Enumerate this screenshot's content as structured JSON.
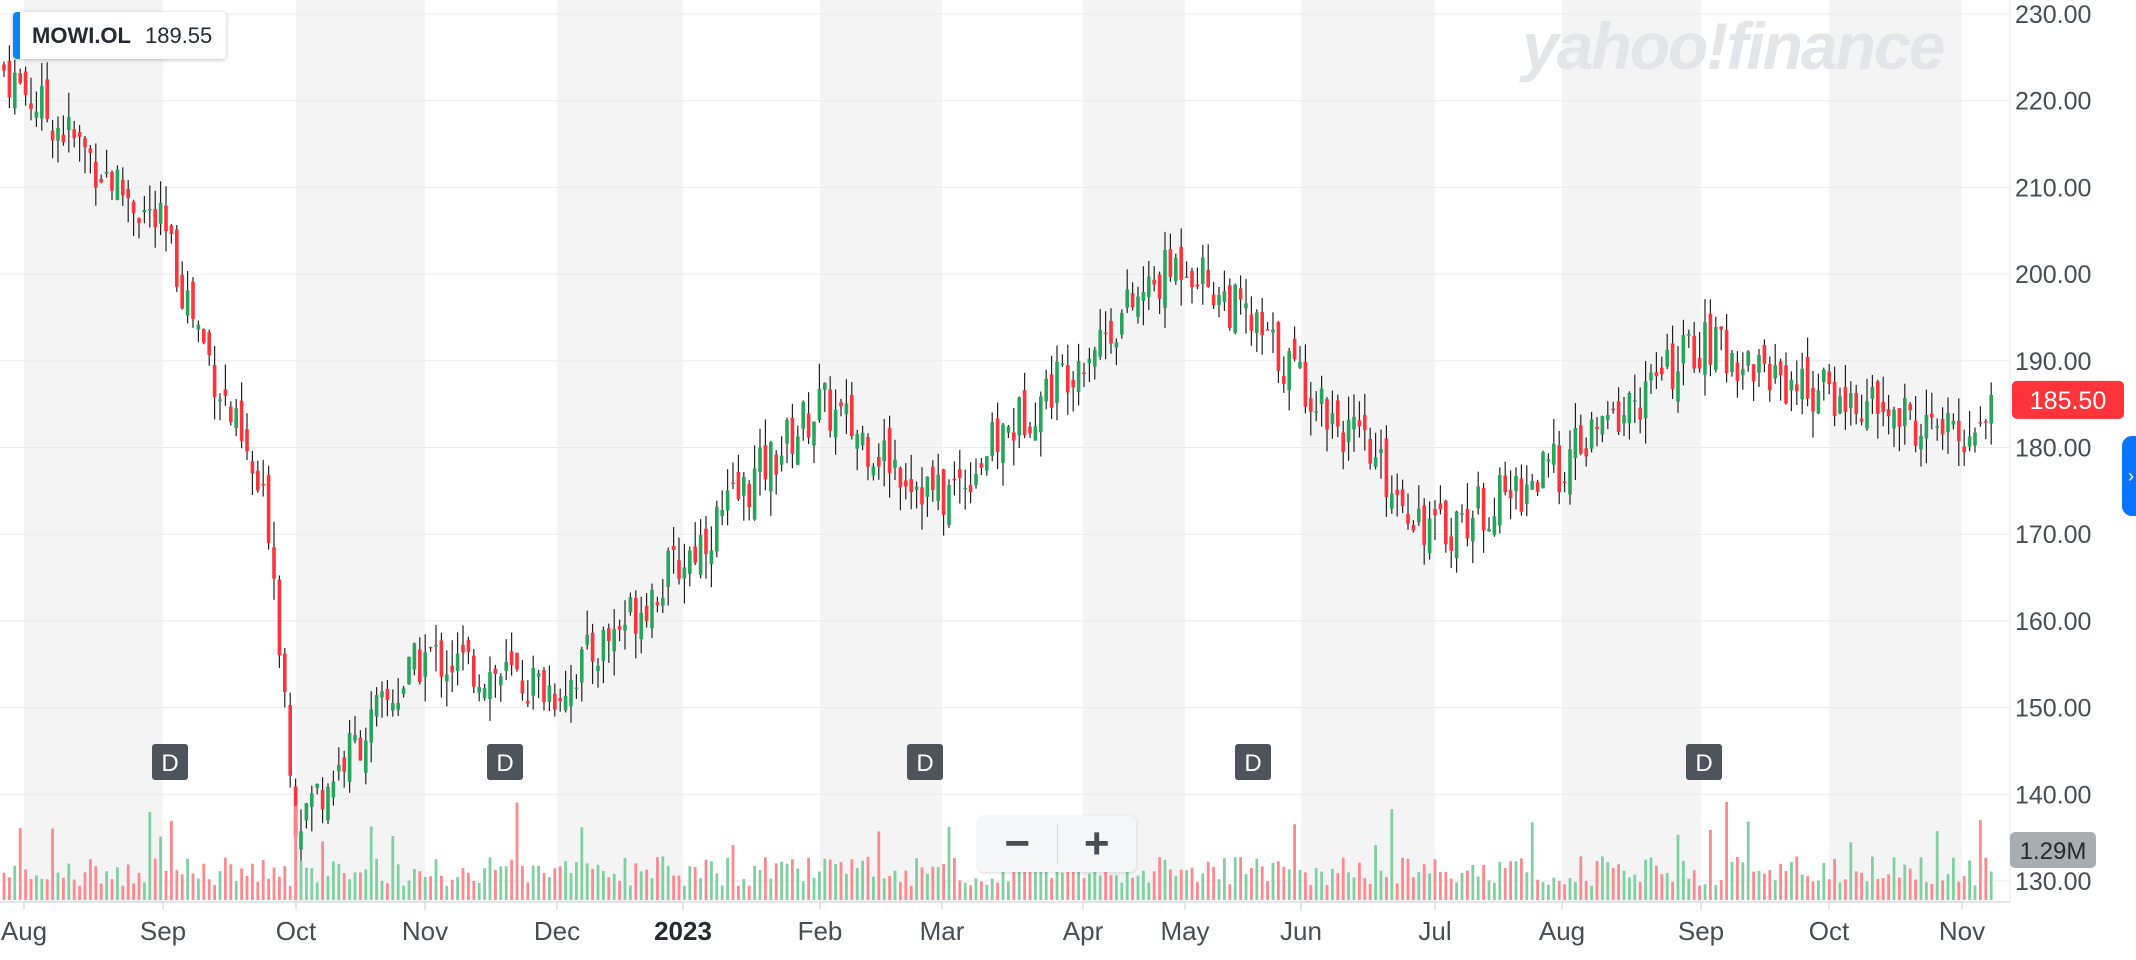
{
  "legend": {
    "symbol": "MOWI.OL",
    "value": "189.55"
  },
  "watermark": "yahoo!finance",
  "zoom": {
    "minus": "−",
    "plus": "+"
  },
  "last_price_label": "185.50",
  "volume_label": "1.29M",
  "colors": {
    "up": "#26a65b",
    "down": "#ff333a",
    "wick": "#222222",
    "price_tag": "#ff333a",
    "volume_tag": "#a8adb2",
    "band": "#f4f4f5",
    "grid": "#ebebeb",
    "axis_text": "#474d53",
    "accent": "#0a84ff"
  },
  "chart_data": {
    "type": "candlestick",
    "title": "",
    "y_axis": {
      "side": "right",
      "min": 130,
      "max": 230,
      "ticks": [
        "130.00",
        "140.00",
        "150.00",
        "160.00",
        "170.00",
        "180.00",
        "190.00",
        "200.00",
        "210.00",
        "220.00",
        "230.00"
      ]
    },
    "x_ticks": [
      "Aug",
      "Sep",
      "Oct",
      "Nov",
      "Dec",
      "2023",
      "Feb",
      "Mar",
      "Apr",
      "May",
      "Jun",
      "Jul",
      "Aug",
      "Sep",
      "Oct",
      "Nov"
    ],
    "x_ticks_bold": [
      "2023"
    ],
    "dividend_markers": [
      {
        "label": "D",
        "near": "Sep"
      },
      {
        "label": "D",
        "near": "Nov"
      },
      {
        "label": "D",
        "near": "Mar"
      },
      {
        "label": "D",
        "near": "May"
      },
      {
        "label": "D",
        "near": "Sep"
      }
    ],
    "approx_close_path": [
      {
        "x": "Aug 2022",
        "y": 224
      },
      {
        "x": "Sep 2022",
        "y": 205
      },
      {
        "x": "late Sep 2022",
        "y": 171
      },
      {
        "x": "Oct 2022",
        "y": 137
      },
      {
        "x": "Nov 2022",
        "y": 156
      },
      {
        "x": "Dec 2022",
        "y": 152
      },
      {
        "x": "Jan 2023",
        "y": 167
      },
      {
        "x": "Feb 2023",
        "y": 185
      },
      {
        "x": "Mar 2023",
        "y": 174
      },
      {
        "x": "Apr 2023",
        "y": 191
      },
      {
        "x": "May 2023",
        "y": 202
      },
      {
        "x": "Jun 2023",
        "y": 188
      },
      {
        "x": "Jul 2023",
        "y": 170
      },
      {
        "x": "Aug 2023",
        "y": 178
      },
      {
        "x": "Sep 2023",
        "y": 192
      },
      {
        "x": "Oct 2023",
        "y": 186
      },
      {
        "x": "Nov 2023",
        "y": 181
      },
      {
        "x": "latest",
        "y": 185.5
      }
    ],
    "last_price": 185.5,
    "last_volume": "1.29M",
    "grid": true,
    "volume_bars": true
  }
}
